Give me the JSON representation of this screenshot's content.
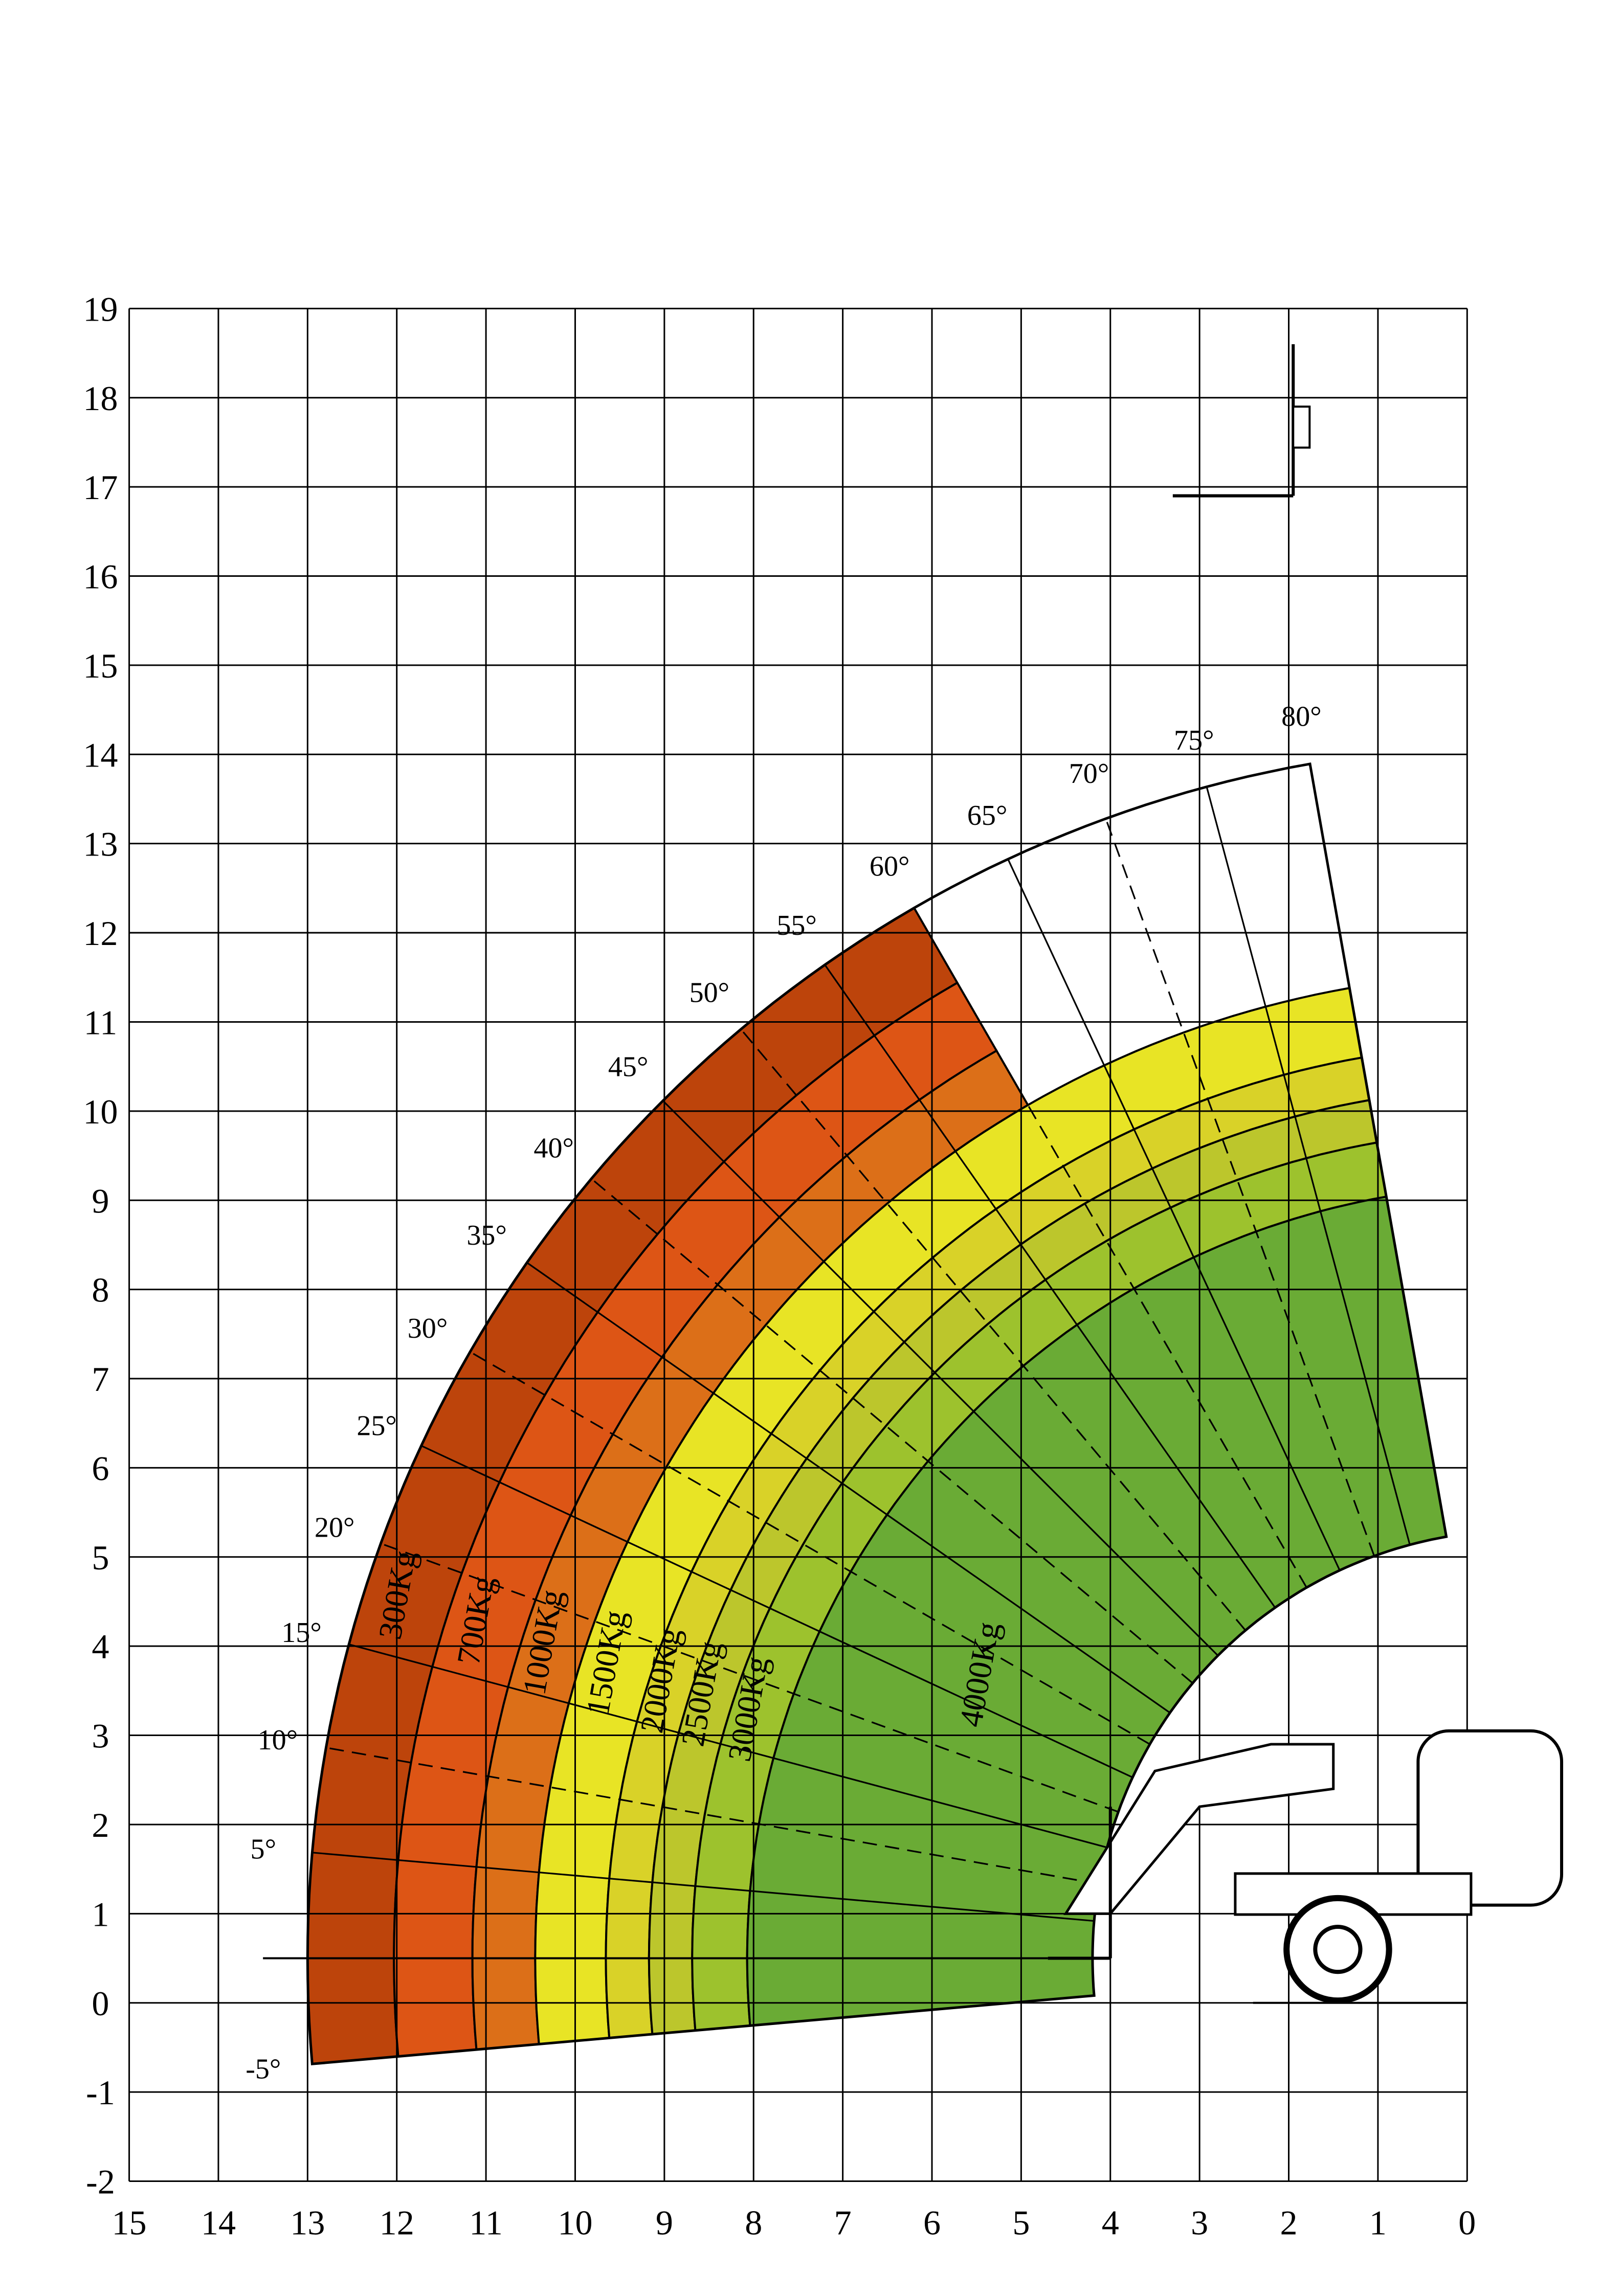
{
  "chart_data": {
    "type": "area",
    "title": "",
    "xlabel": "",
    "ylabel": "",
    "xlim": [
      15,
      0
    ],
    "ylim": [
      -2,
      19
    ],
    "x_ticks": [
      "15",
      "14",
      "13",
      "12",
      "11",
      "10",
      "9",
      "8",
      "7",
      "6",
      "5",
      "4",
      "3",
      "2",
      "1",
      "0"
    ],
    "y_ticks": [
      "19",
      "18",
      "17",
      "16",
      "15",
      "14",
      "13",
      "12",
      "11",
      "10",
      "9",
      "8",
      "7",
      "6",
      "5",
      "4",
      "3",
      "2",
      "1",
      "0",
      "-1",
      "-2"
    ],
    "grid": true,
    "pivot": [
      -0.6,
      0.5
    ],
    "boom_length_range": [
      4.8,
      13.6
    ],
    "capacity_zones": [
      {
        "label": "300Kg",
        "kg": 300,
        "color": "#bd440b"
      },
      {
        "label": "700Kg",
        "kg": 700,
        "color": "#dd5515"
      },
      {
        "label": "1000Kg",
        "kg": 1000,
        "color": "#dc6f18"
      },
      {
        "label": "1500Kg",
        "kg": 1500,
        "color": "#e8e425"
      },
      {
        "label": "2000Kg",
        "kg": 2000,
        "color": "#d9d228"
      },
      {
        "label": "2500Kg",
        "kg": 2500,
        "color": "#bcc62c"
      },
      {
        "label": "3000Kg",
        "kg": 3000,
        "color": "#9dc22d"
      },
      {
        "label": "4000Kg",
        "kg": 4000,
        "color": "#6aab35"
      }
    ],
    "angle_labels": [
      "-5°",
      "5°",
      "10°",
      "15°",
      "20°",
      "25°",
      "30°",
      "35°",
      "40°",
      "45°",
      "50°",
      "55°",
      "60°",
      "65°",
      "70°",
      "75°",
      "80°"
    ]
  }
}
